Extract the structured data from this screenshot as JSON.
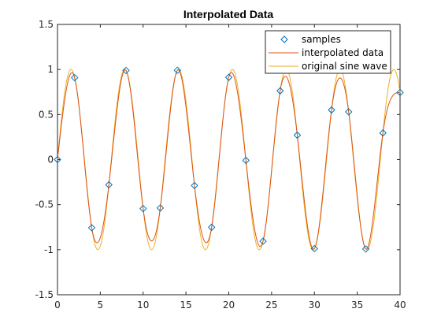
{
  "chart_data": {
    "type": "line",
    "title": "Interpolated Data",
    "xlabel": "",
    "ylabel": "",
    "xlim": [
      0,
      40
    ],
    "ylim": [
      -1.5,
      1.5
    ],
    "x_ticks": [
      "0",
      "5",
      "10",
      "15",
      "20",
      "25",
      "30",
      "35",
      "40"
    ],
    "y_ticks": [
      "-1.5",
      "-1",
      "-0.5",
      "0",
      "0.5",
      "1",
      "1.5"
    ],
    "grid": false,
    "legend_position": "top-right",
    "legend": [
      "samples",
      "interpolated data",
      "original sine wave"
    ],
    "colors": {
      "samples": "#0072BD",
      "interpolated": "#D95319",
      "original": "#EDB120"
    },
    "series": [
      {
        "name": "samples",
        "style": "markers",
        "x": [
          0,
          2,
          4,
          6,
          8,
          10,
          12,
          14,
          16,
          18,
          20,
          22,
          24,
          26,
          28,
          30,
          32,
          34,
          36,
          38,
          40
        ],
        "y": [
          0,
          0.909,
          -0.757,
          -0.279,
          0.989,
          -0.544,
          -0.537,
          0.991,
          -0.288,
          -0.751,
          0.913,
          -0.009,
          -0.906,
          0.763,
          0.271,
          -0.988,
          0.551,
          0.529,
          -0.992,
          0.296,
          0.745
        ]
      },
      {
        "name": "interpolated data",
        "style": "line",
        "method": "spline through samples"
      },
      {
        "name": "original sine wave",
        "style": "line",
        "function": "sin(x)"
      }
    ]
  }
}
